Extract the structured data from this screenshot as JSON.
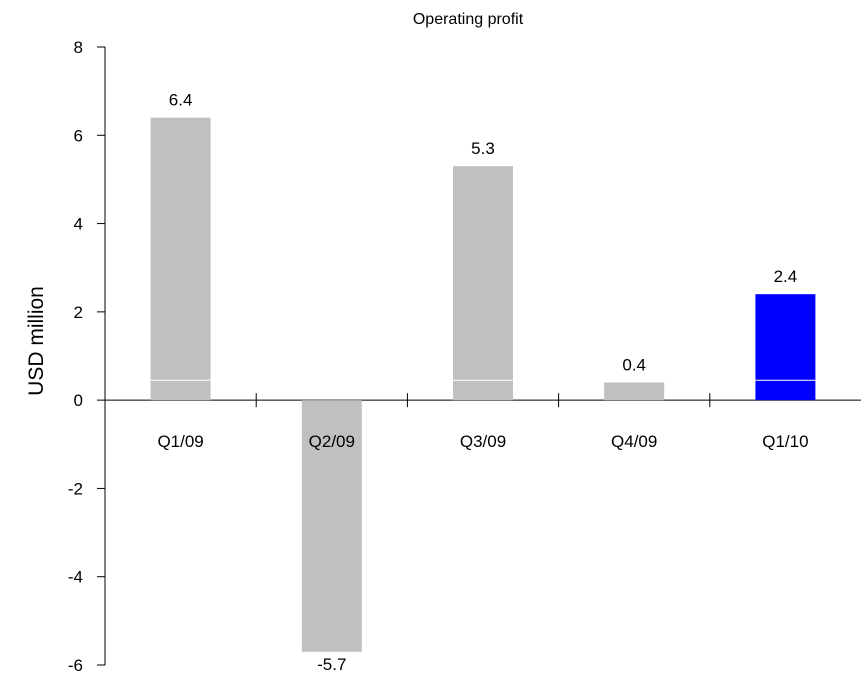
{
  "chart_data": {
    "type": "bar",
    "title": "Operating profit",
    "ylabel": "USD million",
    "xlabel": "",
    "categories": [
      "Q1/09",
      "Q2/09",
      "Q3/09",
      "Q4/09",
      "Q1/10"
    ],
    "values": [
      6.4,
      -5.7,
      5.3,
      0.4,
      2.4
    ],
    "value_labels": [
      "6.4",
      "-5.7",
      "5.3",
      "0.4",
      "2.4"
    ],
    "ylim": [
      -6,
      8
    ],
    "yticks": [
      8,
      6,
      4,
      2,
      0,
      -2,
      -4,
      -6
    ],
    "ytick_labels": [
      "8",
      "6",
      "4",
      "2",
      "0",
      "-2",
      "-4",
      "-6"
    ],
    "grid": false,
    "colors": {
      "default_bar": "#c0c0c0",
      "highlight_bar": "#0000ff",
      "axis": "#000000",
      "band_line": "#ffffff"
    },
    "highlight_index": 4
  }
}
